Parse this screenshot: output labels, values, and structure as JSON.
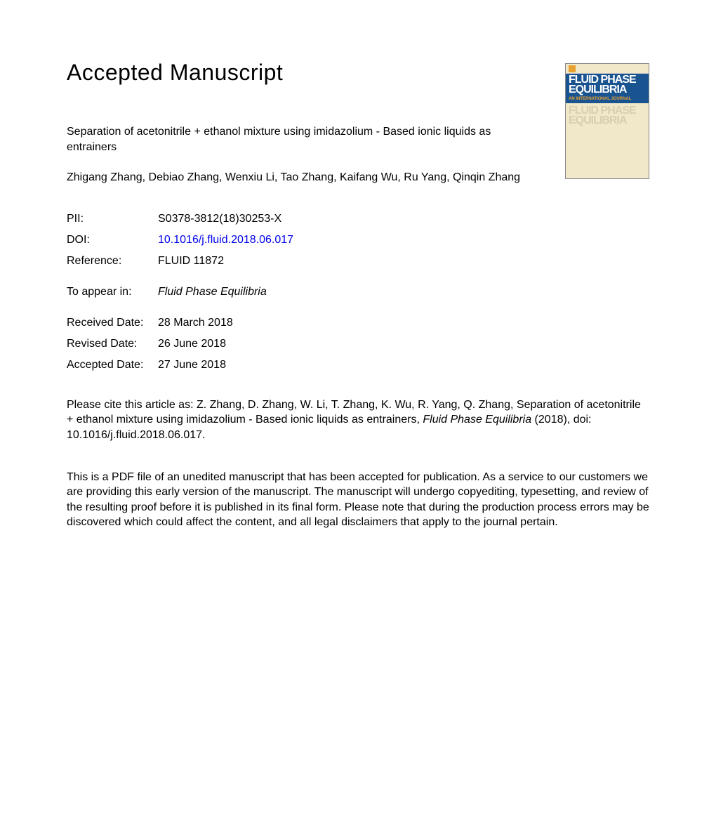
{
  "page": {
    "heading": "Accepted Manuscript",
    "article_title": "Separation of acetonitrile + ethanol mixture using imidazolium - Based ionic liquids as entrainers",
    "authors": "Zhigang Zhang, Debiao Zhang, Wenxiu Li, Tao Zhang, Kaifang Wu, Ru Yang, Qinqin Zhang"
  },
  "meta": {
    "pii_label": "PII:",
    "pii_value": "S0378-3812(18)30253-X",
    "doi_label": "DOI:",
    "doi_value": "10.1016/j.fluid.2018.06.017",
    "reference_label": "Reference:",
    "reference_value": "FLUID 11872",
    "appear_label": "To appear in:",
    "appear_value": "Fluid Phase Equilibria",
    "received_label": "Received Date:",
    "received_value": "28 March 2018",
    "revised_label": "Revised Date:",
    "revised_value": "26 June 2018",
    "accepted_label": "Accepted Date:",
    "accepted_value": "27 June 2018"
  },
  "citation": {
    "prefix": "Please cite this article as: Z. Zhang, D. Zhang, W. Li, T. Zhang, K. Wu, R. Yang, Q. Zhang, Separation of acetonitrile + ethanol mixture using imidazolium - Based ionic liquids as entrainers, ",
    "journal": "Fluid Phase Equilibria",
    "year": " (2018), doi: 10.1016/j.fluid.2018.06.017."
  },
  "disclaimer": "This is a PDF file of an unedited manuscript that has been accepted for publication. As a service to our customers we are providing this early version of the manuscript. The manuscript will undergo copyediting, typesetting, and review of the resulting proof before it is published in its final form. Please note that during the production process errors may be discovered which could affect the content, and all legal disclaimers that apply to the journal pertain.",
  "cover": {
    "title1": "FLUID PHASE",
    "title2": "EQUILIBRIA",
    "subtitle": "AN INTERNATIONAL JOURNAL",
    "ghost1": "FLUID PHASE",
    "ghost2": "EQUILIBRIA",
    "colors": {
      "bg": "#f0e8c8",
      "blue": "#1a5490",
      "ghost": "#d8ceb0",
      "orange": "#e8a030"
    }
  }
}
